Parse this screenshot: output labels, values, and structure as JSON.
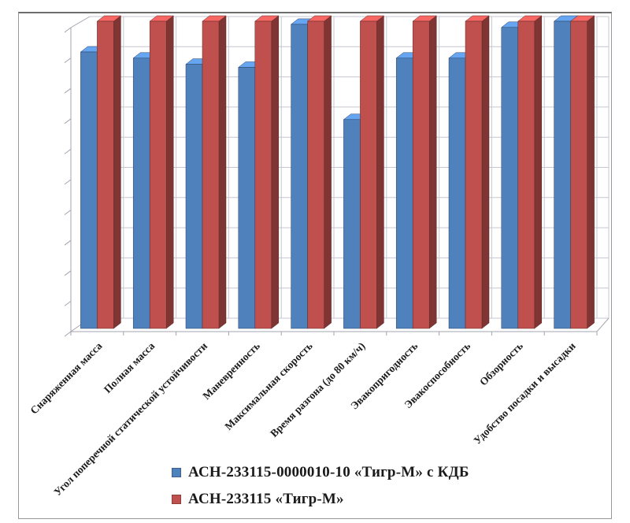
{
  "chart_data": {
    "type": "bar",
    "projection": "3d-clustered-column",
    "title": "",
    "xlabel": "",
    "ylabel": "",
    "ylim": [
      0,
      10
    ],
    "gridline_interval": 1,
    "grid": true,
    "y_tick_labels_visible": false,
    "legend_position": "bottom-center",
    "categories": [
      "Снаряженная масса",
      "Полная масса",
      "Угол поперечной статической устойчивости",
      "Маневренность",
      "Максимальная скорость",
      "Время разгона (до 80 км/ч)",
      "Эвакопригодность",
      "Эвакоспособность",
      "Обзорность",
      "Удобство посадки и высадки"
    ],
    "series": [
      {
        "name": "АСН-233115-0000010-10 «Тигр-М» с КДБ",
        "color": "#4f81bd",
        "values": [
          9.0,
          8.8,
          8.6,
          8.5,
          9.9,
          6.8,
          8.8,
          8.8,
          9.8,
          10.0
        ]
      },
      {
        "name": "АСН-233115 «Тигр-М»",
        "color": "#c0504d",
        "values": [
          10,
          10,
          10,
          10,
          10,
          10,
          10,
          10,
          10,
          10
        ]
      }
    ]
  },
  "colors": {
    "gridline": "#c6c6d2",
    "axis": "#a3a3b0",
    "frame_border": "#979797",
    "label_text": "#1b1b1b"
  }
}
